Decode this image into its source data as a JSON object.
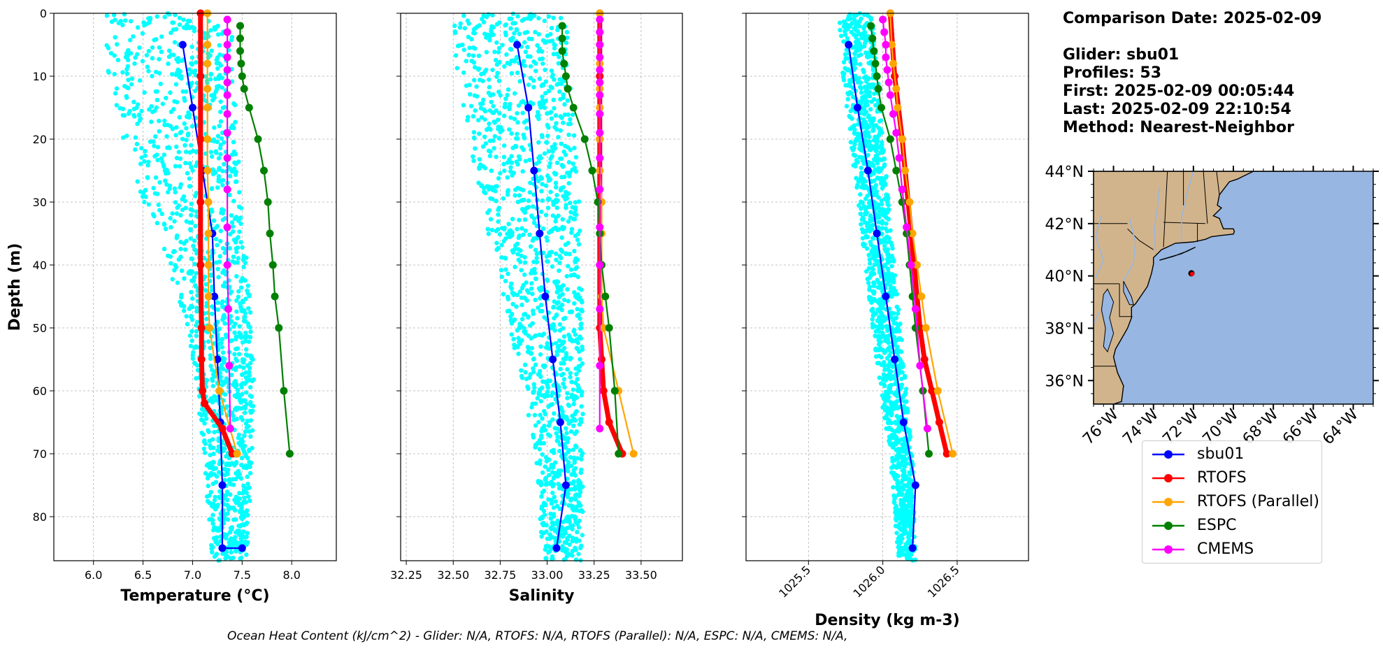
{
  "chart_data": [
    {
      "type": "line",
      "panel": "temperature",
      "xlabel": "Temperature (°C)",
      "ylabel": "Depth (m)",
      "xlim": [
        5.6,
        8.45
      ],
      "ylim": [
        87,
        0
      ],
      "xticks": [
        "6.0",
        "6.5",
        "7.0",
        "7.5",
        "8.0"
      ],
      "xtick_values": [
        6.0,
        6.5,
        7.0,
        7.5,
        8.0
      ],
      "yticks": [
        "0",
        "10",
        "20",
        "30",
        "40",
        "50",
        "60",
        "70",
        "80"
      ],
      "ytick_values": [
        0,
        10,
        20,
        30,
        40,
        50,
        60,
        70,
        80
      ],
      "grid": true,
      "series": [
        {
          "name": "sbu01",
          "color": "#0000ff",
          "x": [
            6.9,
            7.0,
            7.1,
            7.2,
            7.22,
            7.25,
            7.28,
            7.3,
            7.3,
            7.5
          ],
          "y": [
            5,
            15,
            25,
            35,
            45,
            55,
            65,
            75,
            85,
            85
          ]
        },
        {
          "name": "RTOFS",
          "color": "#ff0000",
          "x": [
            7.08,
            7.08,
            7.08,
            7.08,
            7.08,
            7.09,
            7.09,
            7.1,
            7.12,
            7.3,
            7.4
          ],
          "y": [
            0,
            10,
            20,
            30,
            40,
            50,
            55,
            60,
            62,
            66,
            70
          ]
        },
        {
          "name": "RTOFS (Parallel)",
          "color": "#ffa500",
          "x": [
            7.15,
            7.15,
            7.15,
            7.15,
            7.15,
            7.15,
            7.15,
            7.16,
            7.16,
            7.16,
            7.16,
            7.17,
            7.27,
            7.45
          ],
          "y": [
            0,
            5,
            8,
            12,
            15,
            20,
            25,
            30,
            35,
            40,
            45,
            50,
            60,
            70
          ]
        },
        {
          "name": "ESPC",
          "color": "#008000",
          "x": [
            7.48,
            7.48,
            7.48,
            7.49,
            7.5,
            7.52,
            7.57,
            7.66,
            7.72,
            7.76,
            7.78,
            7.81,
            7.83,
            7.87,
            7.92,
            7.98
          ],
          "y": [
            2,
            4,
            6,
            8,
            10,
            12,
            15,
            20,
            25,
            30,
            35,
            40,
            45,
            50,
            60,
            70
          ]
        },
        {
          "name": "CMEMS",
          "color": "#ff00ff",
          "x": [
            7.35,
            7.35,
            7.35,
            7.35,
            7.35,
            7.35,
            7.35,
            7.35,
            7.35,
            7.35,
            7.35,
            7.35,
            7.35,
            7.36,
            7.37,
            7.38
          ],
          "y": [
            1,
            3,
            5,
            7,
            9,
            11,
            13,
            16,
            19,
            23,
            28,
            34,
            40,
            47,
            56,
            66
          ]
        }
      ]
    },
    {
      "type": "line",
      "panel": "salinity",
      "xlabel": "Salinity",
      "xlim": [
        32.22,
        33.72
      ],
      "ylim": [
        87,
        0
      ],
      "xticks": [
        "32.25",
        "32.50",
        "32.75",
        "33.00",
        "33.25",
        "33.50"
      ],
      "xtick_values": [
        32.25,
        32.5,
        32.75,
        33.0,
        33.25,
        33.5
      ],
      "yticks": [
        "",
        "",
        "",
        "",
        "",
        "",
        "",
        "",
        ""
      ],
      "ytick_values": [
        0,
        10,
        20,
        30,
        40,
        50,
        60,
        70,
        80
      ],
      "grid": true,
      "series": [
        {
          "name": "sbu01",
          "color": "#0000ff",
          "x": [
            32.84,
            32.9,
            32.93,
            32.96,
            32.99,
            33.03,
            33.07,
            33.1,
            33.05
          ],
          "y": [
            5,
            15,
            25,
            35,
            45,
            55,
            65,
            75,
            85
          ]
        },
        {
          "name": "RTOFS",
          "color": "#ff0000",
          "x": [
            33.28,
            33.28,
            33.28,
            33.28,
            33.28,
            33.28,
            33.29,
            33.3,
            33.33,
            33.4
          ],
          "y": [
            0,
            10,
            20,
            30,
            40,
            50,
            55,
            60,
            65,
            70
          ]
        },
        {
          "name": "RTOFS (Parallel)",
          "color": "#ffa500",
          "x": [
            33.28,
            33.28,
            33.28,
            33.28,
            33.28,
            33.28,
            33.28,
            33.29,
            33.29,
            33.29,
            33.29,
            33.3,
            33.38,
            33.46
          ],
          "y": [
            0,
            5,
            8,
            12,
            15,
            20,
            25,
            30,
            35,
            40,
            45,
            50,
            60,
            70
          ]
        },
        {
          "name": "ESPC",
          "color": "#008000",
          "x": [
            33.08,
            33.08,
            33.08,
            33.09,
            33.1,
            33.11,
            33.14,
            33.2,
            33.24,
            33.27,
            33.28,
            33.29,
            33.31,
            33.33,
            33.36,
            33.38
          ],
          "y": [
            2,
            4,
            6,
            8,
            10,
            12,
            15,
            20,
            25,
            30,
            35,
            40,
            45,
            50,
            60,
            70
          ]
        },
        {
          "name": "CMEMS",
          "color": "#ff00ff",
          "x": [
            33.28,
            33.28,
            33.28,
            33.28,
            33.28,
            33.28,
            33.28,
            33.28,
            33.28,
            33.28,
            33.28,
            33.28,
            33.28,
            33.28,
            33.28,
            33.28
          ],
          "y": [
            1,
            3,
            5,
            7,
            9,
            11,
            13,
            16,
            19,
            23,
            28,
            34,
            40,
            47,
            56,
            66
          ]
        }
      ]
    },
    {
      "type": "line",
      "panel": "density",
      "xlabel": "Density (kg m-3)",
      "xlim": [
        1025.08,
        1026.98
      ],
      "ylim": [
        87,
        0
      ],
      "xticks": [
        "1025.5",
        "1026.0",
        "1026.5"
      ],
      "xtick_values": [
        1025.5,
        1026.0,
        1026.5
      ],
      "yticks": [
        "",
        "",
        "",
        "",
        "",
        "",
        "",
        "",
        ""
      ],
      "ytick_values": [
        0,
        10,
        20,
        30,
        40,
        50,
        60,
        70,
        80
      ],
      "grid": true,
      "series": [
        {
          "name": "sbu01",
          "color": "#0000ff",
          "x": [
            1025.77,
            1025.83,
            1025.9,
            1025.96,
            1026.02,
            1026.08,
            1026.14,
            1026.22,
            1026.2
          ],
          "y": [
            5,
            15,
            25,
            35,
            45,
            55,
            65,
            75,
            85
          ]
        },
        {
          "name": "RTOFS",
          "color": "#ff0000",
          "x": [
            1026.05,
            1026.08,
            1026.13,
            1026.17,
            1026.21,
            1026.25,
            1026.28,
            1026.33,
            1026.38,
            1026.43
          ],
          "y": [
            0,
            10,
            20,
            30,
            40,
            50,
            55,
            60,
            65,
            70
          ]
        },
        {
          "name": "RTOFS (Parallel)",
          "color": "#ffa500",
          "x": [
            1026.05,
            1026.06,
            1026.07,
            1026.09,
            1026.1,
            1026.13,
            1026.15,
            1026.18,
            1026.2,
            1026.23,
            1026.26,
            1026.29,
            1026.37,
            1026.47
          ],
          "y": [
            0,
            5,
            8,
            12,
            15,
            20,
            25,
            30,
            35,
            40,
            45,
            50,
            60,
            70
          ]
        },
        {
          "name": "ESPC",
          "color": "#008000",
          "x": [
            1025.92,
            1025.93,
            1025.94,
            1025.95,
            1025.96,
            1025.97,
            1025.99,
            1026.05,
            1026.09,
            1026.13,
            1026.16,
            1026.18,
            1026.2,
            1026.22,
            1026.27,
            1026.31
          ],
          "y": [
            2,
            4,
            6,
            8,
            10,
            12,
            15,
            20,
            25,
            30,
            35,
            40,
            45,
            50,
            60,
            70
          ]
        },
        {
          "name": "CMEMS",
          "color": "#ff00ff",
          "x": [
            1026.0,
            1026.01,
            1026.02,
            1026.02,
            1026.03,
            1026.04,
            1026.05,
            1026.07,
            1026.09,
            1026.11,
            1026.13,
            1026.16,
            1026.19,
            1026.22,
            1026.25,
            1026.3
          ],
          "y": [
            1,
            3,
            5,
            7,
            9,
            11,
            13,
            16,
            19,
            23,
            28,
            34,
            40,
            47,
            56,
            66
          ]
        }
      ]
    }
  ],
  "glider_cloud": {
    "color": "#00ffff",
    "temperature": {
      "left": [
        6.1,
        6.15,
        6.3,
        6.5,
        6.75,
        6.95,
        7.05,
        7.1,
        7.2
      ],
      "right": [
        7.4,
        7.42,
        7.45,
        7.5,
        7.55,
        7.6,
        7.62,
        7.6,
        7.55
      ]
    },
    "salinity": {
      "left": [
        32.5,
        32.52,
        32.58,
        32.65,
        32.72,
        32.8,
        32.88,
        32.93,
        32.98
      ],
      "right": [
        33.1,
        33.12,
        33.15,
        33.17,
        33.18,
        33.19,
        33.19,
        33.19,
        33.19
      ]
    },
    "density": {
      "left": [
        1025.7,
        1025.73,
        1025.78,
        1025.83,
        1025.88,
        1025.93,
        1025.98,
        1026.05,
        1026.1
      ],
      "right": [
        1025.93,
        1025.97,
        1026.0,
        1026.04,
        1026.08,
        1026.12,
        1026.16,
        1026.2,
        1026.22
      ]
    },
    "depths": [
      0,
      10,
      20,
      30,
      40,
      50,
      60,
      70,
      87
    ]
  },
  "info": {
    "comparison_date": "Comparison Date: 2025-02-09",
    "glider": "Glider: sbu01",
    "profiles": "Profiles: 53",
    "first": "First: 2025-02-09 00:05:44",
    "last": "Last: 2025-02-09 22:10:54",
    "method": "Method: Nearest-Neighbor"
  },
  "map": {
    "lat_labels": [
      "44°N",
      "42°N",
      "40°N",
      "38°N",
      "36°N"
    ],
    "lat_values": [
      44,
      42,
      40,
      38,
      36
    ],
    "lon_labels": [
      "76°W",
      "74°W",
      "72°W",
      "70°W",
      "68°W",
      "66°W",
      "64°W"
    ],
    "lon_values": [
      -76,
      -74,
      -72,
      -70,
      -68,
      -66,
      -64
    ],
    "extent": {
      "lon_min": -77,
      "lon_max": -63,
      "lat_min": 35.1,
      "lat_max": 44
    },
    "glider_position": {
      "lon": -72.1,
      "lat": 40.1
    },
    "land_color": "#d2b48c",
    "ocean_color": "#97b6e1"
  },
  "legend": {
    "items": [
      {
        "label": "sbu01",
        "color": "#0000ff"
      },
      {
        "label": "RTOFS",
        "color": "#ff0000"
      },
      {
        "label": "RTOFS (Parallel)",
        "color": "#ffa500"
      },
      {
        "label": "ESPC",
        "color": "#008000"
      },
      {
        "label": "CMEMS",
        "color": "#ff00ff"
      }
    ]
  },
  "ohc_text": "Ocean Heat Content (kJ/cm^2) - Glider: N/A,  RTOFS: N/A,  RTOFS (Parallel): N/A,  ESPC: N/A,  CMEMS: N/A,"
}
